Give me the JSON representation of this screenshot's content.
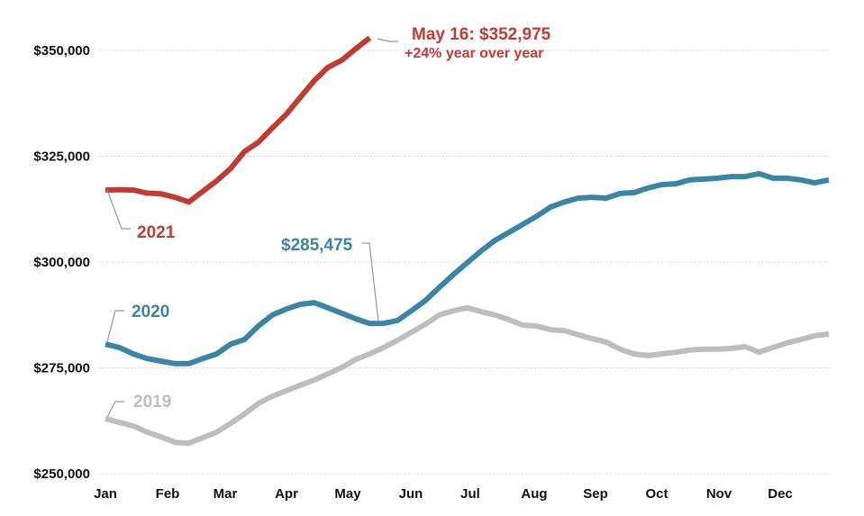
{
  "chart_data": {
    "type": "line",
    "title": "",
    "xlabel": "",
    "ylabel": "",
    "x_unit": "week of year",
    "ylim": [
      250000,
      355000
    ],
    "yticks": [
      250000,
      275000,
      300000,
      325000,
      350000
    ],
    "ytick_labels": [
      "$250,000",
      "$275,000",
      "$300,000",
      "$325,000",
      "$350,000"
    ],
    "xtick_labels": [
      "Jan",
      "Feb",
      "Mar",
      "Apr",
      "May",
      "Jun",
      "Jul",
      "Aug",
      "Sep",
      "Oct",
      "Nov",
      "Dec"
    ],
    "grid": true,
    "legend": "none",
    "series": [
      {
        "name": "2021",
        "color": "#c23b33",
        "values": [
          317000,
          317100,
          317000,
          316300,
          316100,
          315300,
          314200,
          316700,
          319200,
          322100,
          326100,
          328300,
          331700,
          334900,
          338900,
          342800,
          346000,
          347700,
          350400,
          352975
        ]
      },
      {
        "name": "2020",
        "color": "#3a84a4",
        "values": [
          280600,
          279800,
          278300,
          277200,
          276600,
          276000,
          276000,
          277200,
          278300,
          280600,
          281700,
          284900,
          287500,
          288900,
          290000,
          290400,
          289200,
          287900,
          286600,
          285475,
          285500,
          286200,
          288500,
          290900,
          294000,
          297000,
          299800,
          302600,
          305100,
          307000,
          308900,
          310800,
          313000,
          314200,
          315100,
          315300,
          315100,
          316200,
          316400,
          317500,
          318300,
          318500,
          319400,
          319600,
          319800,
          320200,
          320200,
          320900,
          319800,
          319800,
          319400,
          318700,
          319400
        ]
      },
      {
        "name": "2019",
        "color": "#bdbdbd",
        "values": [
          263000,
          262100,
          261300,
          259800,
          258700,
          257400,
          257200,
          258500,
          259800,
          261900,
          264100,
          266600,
          268300,
          269600,
          270900,
          272100,
          273600,
          275100,
          277000,
          278300,
          279800,
          281500,
          283400,
          285300,
          287500,
          288500,
          289200,
          288300,
          287500,
          286400,
          285100,
          284900,
          284000,
          283800,
          282800,
          281900,
          281100,
          279400,
          278300,
          277900,
          278300,
          278700,
          279200,
          279400,
          279400,
          279600,
          280000,
          278700,
          279800,
          280900,
          281700,
          282600,
          283000
        ]
      }
    ],
    "annotations": {
      "latest": "May 16: $352,975",
      "yoy": "+24% year over year",
      "low_2020": "$285,475"
    }
  }
}
